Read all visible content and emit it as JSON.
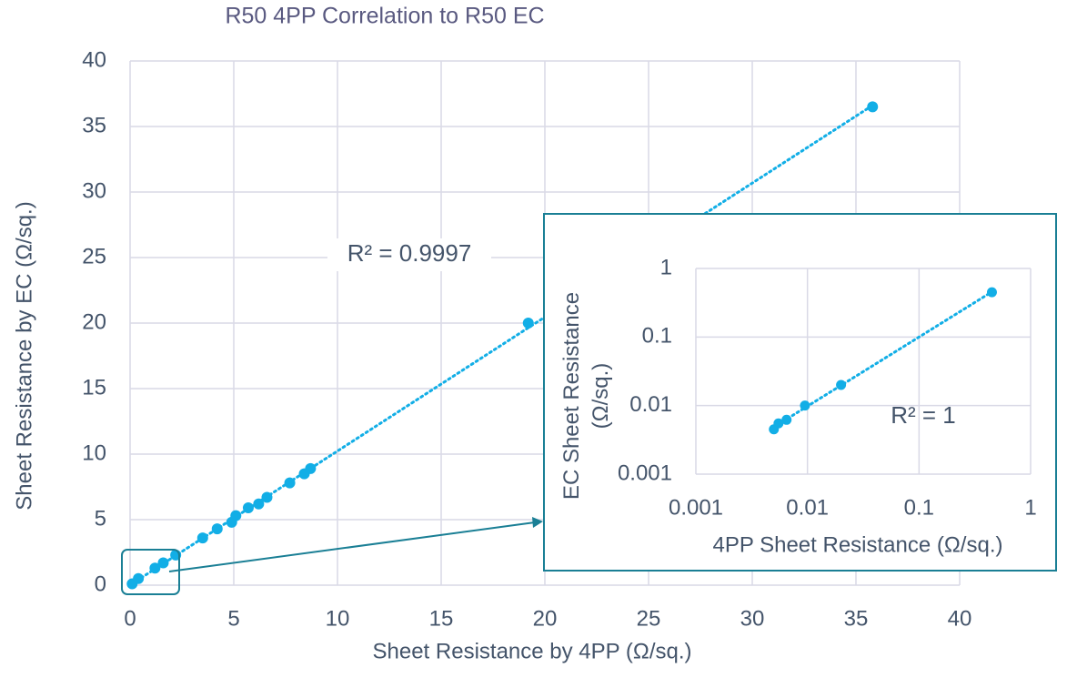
{
  "chart_data": [
    {
      "type": "scatter",
      "title": "R50 4PP Correlation to R50 EC",
      "x_label": "Sheet Resistance by 4PP (Ω/sq.)",
      "y_label": "Sheet Resistance by EC (Ω/sq.)",
      "annotation": "R² = 0.9997",
      "series": [
        {
          "color": "#12aee6",
          "x": [
            0.1,
            0.4,
            1.2,
            1.6,
            2.2,
            3.5,
            4.2,
            4.9,
            5.1,
            5.7,
            6.2,
            6.6,
            7.7,
            8.4,
            8.7,
            19.2,
            35.8
          ],
          "values": [
            0.1,
            0.5,
            1.3,
            1.7,
            2.3,
            3.6,
            4.3,
            4.8,
            5.3,
            5.9,
            6.2,
            6.7,
            7.8,
            8.5,
            8.9,
            20.0,
            36.5
          ]
        }
      ],
      "xlim": [
        0,
        40
      ],
      "xticks": [
        0,
        5,
        10,
        15,
        20,
        25,
        30,
        35,
        40
      ],
      "ylim": [
        0,
        40
      ],
      "yticks": [
        0,
        5,
        10,
        15,
        20,
        25,
        30,
        35,
        40
      ],
      "grid": true,
      "log": false,
      "trendline": true
    },
    {
      "type": "scatter",
      "x_label": "4PP Sheet Resistance (Ω/sq.)",
      "y_label": "EC Sheet Resistance (Ω/sq.)",
      "annotation": "R² = 1",
      "series": [
        {
          "color": "#12aee6",
          "x": [
            0.005,
            0.0055,
            0.0065,
            0.0095,
            0.02,
            0.45
          ],
          "values": [
            0.0045,
            0.0055,
            0.0062,
            0.01,
            0.02,
            0.45
          ]
        }
      ],
      "xlim": [
        0.001,
        1
      ],
      "xticks": [
        0.001,
        0.01,
        0.1,
        1
      ],
      "ylim": [
        0.001,
        1
      ],
      "yticks": [
        0.001,
        0.01,
        0.1,
        1
      ],
      "grid": true,
      "log": true,
      "trendline": true
    }
  ]
}
